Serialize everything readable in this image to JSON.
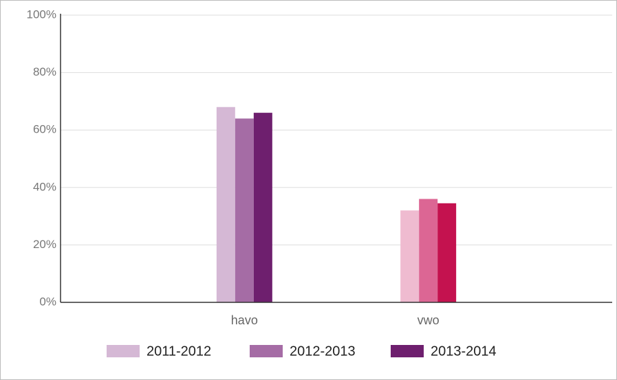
{
  "chart_data": {
    "type": "bar",
    "categories": [
      "havo",
      "vwo"
    ],
    "series": [
      {
        "name": "2011-2012",
        "color": "#d5b8d5",
        "colors": [
          "#d5b8d5",
          "#efbbd0"
        ],
        "values": [
          68,
          32
        ]
      },
      {
        "name": "2012-2013",
        "color": "#a56ca5",
        "colors": [
          "#a56ca5",
          "#dc6694"
        ],
        "values": [
          64,
          36
        ]
      },
      {
        "name": "2013-2014",
        "color": "#6e1f6e",
        "colors": [
          "#6e1f6e",
          "#c4124f"
        ],
        "values": [
          66,
          34.5
        ]
      }
    ],
    "ylim": [
      0,
      100
    ],
    "yticks": [
      {
        "value": 0,
        "label": "0%"
      },
      {
        "value": 20,
        "label": "20%"
      },
      {
        "value": 40,
        "label": "40%"
      },
      {
        "value": 60,
        "label": "60%"
      },
      {
        "value": 80,
        "label": "80%"
      },
      {
        "value": 100,
        "label": "100%"
      }
    ],
    "grid": true,
    "legend": "bottom"
  }
}
